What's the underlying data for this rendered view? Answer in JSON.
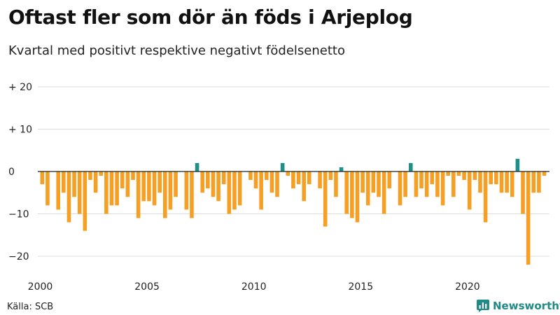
{
  "title": "Oftast fler som dör än föds i Arjeplog",
  "subtitle": "Kvartal med positivt respektive negativt födelsenetto",
  "source": "Källa: SCB",
  "brand": "Newsworthy",
  "colors": {
    "positive": "#1f9088",
    "negative": "#f5a024",
    "grid": "#dddddd",
    "zero": "#222222",
    "brand": "#1f8a86"
  },
  "chart_data": {
    "type": "bar",
    "x_unit": "quarter",
    "x_start": "2000 Q1",
    "x_tick_labels": [
      "2000",
      "2005",
      "2010",
      "2015",
      "2020"
    ],
    "y_tick_labels": [
      "+ 20",
      "+ 10",
      "0",
      "−10",
      "−20"
    ],
    "y_ticks": [
      20,
      10,
      0,
      -10,
      -20
    ],
    "ylim": [
      -22,
      20
    ],
    "grid": true,
    "values": [
      -3,
      -8,
      0,
      -9,
      -5,
      -12,
      -6,
      -10,
      -14,
      -2,
      -5,
      -1,
      -10,
      -8,
      -8,
      -4,
      -6,
      -2,
      -11,
      -7,
      -7,
      -8,
      -5,
      -11,
      -9,
      -6,
      0,
      -9,
      -11,
      2,
      -5,
      -4,
      -6,
      -7,
      -3,
      -10,
      -9,
      -8,
      0,
      -2,
      -4,
      -9,
      -2,
      -5,
      -6,
      2,
      -1,
      -4,
      -3,
      -7,
      -3,
      0,
      -4,
      -13,
      -2,
      -6,
      1,
      -10,
      -11,
      -12,
      -5,
      -8,
      -5,
      -6,
      -10,
      -4,
      0,
      -8,
      -6,
      2,
      -6,
      -4,
      -6,
      -3,
      -6,
      -8,
      -1,
      -6,
      -1,
      -2,
      -9,
      -2,
      -5,
      -12,
      -3,
      -3,
      -5,
      -5,
      -6,
      3,
      -10,
      -22,
      -5,
      -5,
      -1
    ]
  }
}
